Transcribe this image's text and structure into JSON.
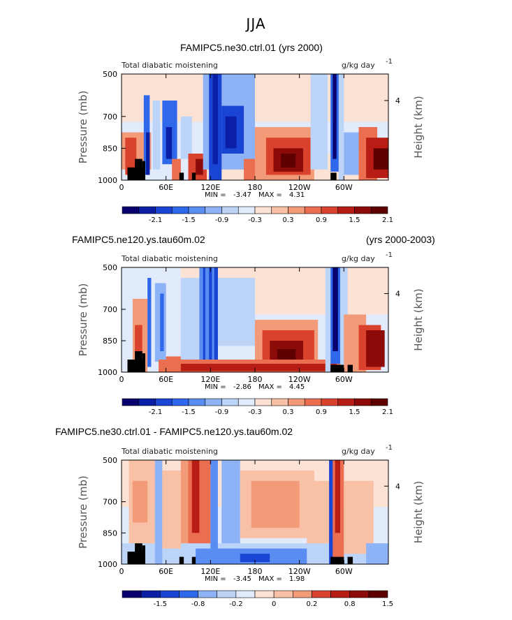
{
  "figure": {
    "main_title": "JJA"
  },
  "chart_data": [
    {
      "type": "heatmap",
      "title": "FAMIPC5.ne30.ctrl.01 (yrs 2000)",
      "title_right": "",
      "subtitle_left": "Total diabatic moistening",
      "units_text": "g/kg day",
      "units_exp": "-1",
      "ylabel": "Pressure (mb)",
      "ylabel_right": "Height (km)",
      "yticks": [
        "500",
        "700",
        "850",
        "1000"
      ],
      "yticks_right": [
        "4"
      ],
      "xticks": [
        "0",
        "60E",
        "120E",
        "180",
        "120W",
        "60W"
      ],
      "stats": {
        "min_label": "MIN =",
        "min": "-3.47",
        "max_label": "MAX =",
        "max": "4.31"
      },
      "colorbar_labels": [
        "-2.1",
        "-1.5",
        "-0.9",
        "-0.3",
        "0.3",
        "0.9",
        "1.5",
        "2.1"
      ]
    },
    {
      "type": "heatmap",
      "title": "FAMIPC5.ne120.ys.tau60m.02",
      "title_right": "(yrs 2000-2003)",
      "subtitle_left": "Total diabatic moistening",
      "units_text": "g/kg day",
      "units_exp": "-1",
      "ylabel": "Pressure (mb)",
      "ylabel_right": "Height (km)",
      "yticks": [
        "500",
        "700",
        "850",
        "1000"
      ],
      "yticks_right": [
        "4"
      ],
      "xticks": [
        "0",
        "60E",
        "120E",
        "180",
        "120W",
        "60W"
      ],
      "stats": {
        "min_label": "MIN =",
        "min": "-2.86",
        "max_label": "MAX =",
        "max": "4.45"
      },
      "colorbar_labels": [
        "-2.1",
        "-1.5",
        "-0.9",
        "-0.3",
        "0.3",
        "0.9",
        "1.5",
        "2.1"
      ]
    },
    {
      "type": "heatmap",
      "title": "FAMIPC5.ne30.ctrl.01 - FAMIPC5.ne120.ys.tau60m.02",
      "title_right": "",
      "subtitle_left": "Total diabatic moistening",
      "units_text": "g/kg day",
      "units_exp": "-1",
      "ylabel": "Pressure (mb)",
      "ylabel_right": "Height (km)",
      "yticks": [
        "500",
        "700",
        "850",
        "1000"
      ],
      "yticks_right": [
        "4"
      ],
      "xticks": [
        "0",
        "60E",
        "120E",
        "180",
        "120W",
        "60W"
      ],
      "stats": {
        "min_label": "MIN =",
        "min": "-3.45",
        "max_label": "MAX =",
        "max": "1.98"
      },
      "colorbar_labels": [
        "-1.5",
        "-0.8",
        "-0.2",
        "0",
        "0.2",
        "0.8",
        "1.5"
      ]
    }
  ],
  "colors": {
    "palette": [
      "#08006e",
      "#0a1fa5",
      "#1a45d4",
      "#2f68ea",
      "#5a8df2",
      "#8db2f5",
      "#bcd4f8",
      "#e1ebfb",
      "#fbe2d4",
      "#f8c0a4",
      "#f39a78",
      "#ea6e4f",
      "#d9432d",
      "#b81d15",
      "#8c0a07",
      "#5e0000"
    ],
    "land": "#000000"
  }
}
